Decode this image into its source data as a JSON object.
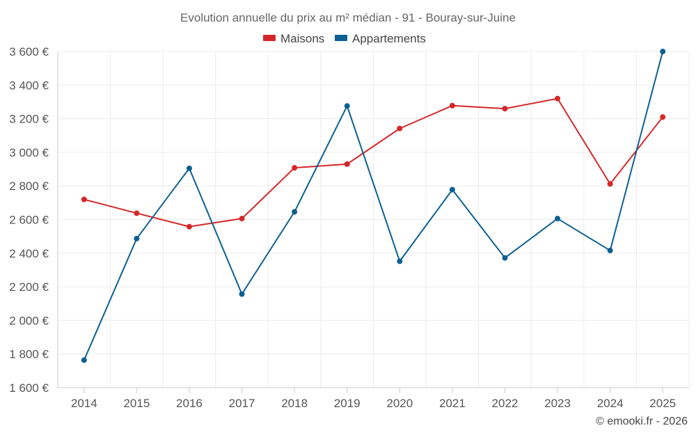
{
  "chart_data": {
    "type": "line",
    "title": "Evolution annuelle du prix au m² médian - 91 - Bouray-sur-Juine",
    "xlabel": "",
    "ylabel": "",
    "categories": [
      "2014",
      "2015",
      "2016",
      "2017",
      "2018",
      "2019",
      "2020",
      "2021",
      "2022",
      "2023",
      "2024",
      "2025"
    ],
    "ylim": [
      1600,
      3600
    ],
    "yticks": [
      1600,
      1800,
      2000,
      2200,
      2400,
      2600,
      2800,
      3000,
      3200,
      3400,
      3600
    ],
    "ytick_labels": [
      "1 600 €",
      "1 800 €",
      "2 000 €",
      "2 200 €",
      "2 400 €",
      "2 600 €",
      "2 800 €",
      "3 000 €",
      "3 200 €",
      "3 400 €",
      "3 600 €"
    ],
    "legend_position": "top-center",
    "grid": true,
    "series": [
      {
        "name": "Maisons",
        "color": "#d62728",
        "values": [
          2720,
          2638,
          2558,
          2606,
          2908,
          2930,
          3142,
          3278,
          3260,
          3320,
          2812,
          3210
        ]
      },
      {
        "name": "Appartements",
        "color": "#0e5f91",
        "values": [
          1764,
          2487,
          2905,
          2157,
          2646,
          3276,
          2352,
          2778,
          2372,
          2606,
          2416,
          3600
        ]
      }
    ],
    "credit": "© emooki.fr - 2026"
  }
}
